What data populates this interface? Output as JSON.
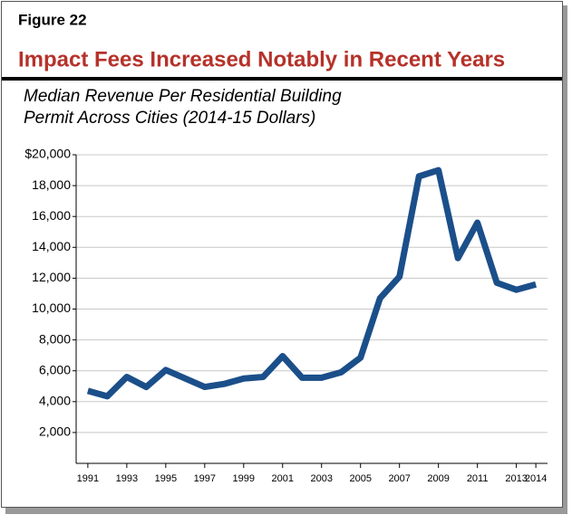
{
  "chart_data": {
    "type": "line",
    "figure_label": "Figure 22",
    "title": "Impact Fees Increased Notably in Recent Years",
    "subtitle": [
      "Median Revenue Per Residential Building",
      "Permit Across Cities (2014-15 Dollars)"
    ],
    "x": [
      1991,
      1992,
      1993,
      1994,
      1995,
      1996,
      1997,
      1998,
      1999,
      2000,
      2001,
      2002,
      2003,
      2004,
      2005,
      2006,
      2007,
      2008,
      2009,
      2010,
      2011,
      2012,
      2013,
      2014
    ],
    "series": [
      {
        "color": "#1b4f8a",
        "values": [
          4700,
          4350,
          5600,
          4950,
          6050,
          5500,
          4950,
          5150,
          5500,
          5600,
          6950,
          5550,
          5550,
          5900,
          6850,
          10700,
          12100,
          18600,
          19000,
          13300,
          15600,
          11700,
          11250,
          11600
        ]
      }
    ],
    "xlim": [
      1990.4,
      2014.6
    ],
    "xticks": [
      1991,
      1993,
      1995,
      1997,
      1999,
      2001,
      2003,
      2005,
      2007,
      2009,
      2011,
      2013,
      2014
    ],
    "ylim": [
      0,
      20000
    ],
    "yticks": [
      {
        "value": 2000,
        "label": "2,000"
      },
      {
        "value": 4000,
        "label": "4,000"
      },
      {
        "value": 6000,
        "label": "6,000"
      },
      {
        "value": 8000,
        "label": "8,000"
      },
      {
        "value": 10000,
        "label": "10,000"
      },
      {
        "value": 12000,
        "label": "12,000"
      },
      {
        "value": 14000,
        "label": "14,000"
      },
      {
        "value": 16000,
        "label": "16,000"
      },
      {
        "value": 18000,
        "label": "18,000"
      },
      {
        "value": 20000,
        "label": "$20,000"
      }
    ],
    "grid": true
  }
}
